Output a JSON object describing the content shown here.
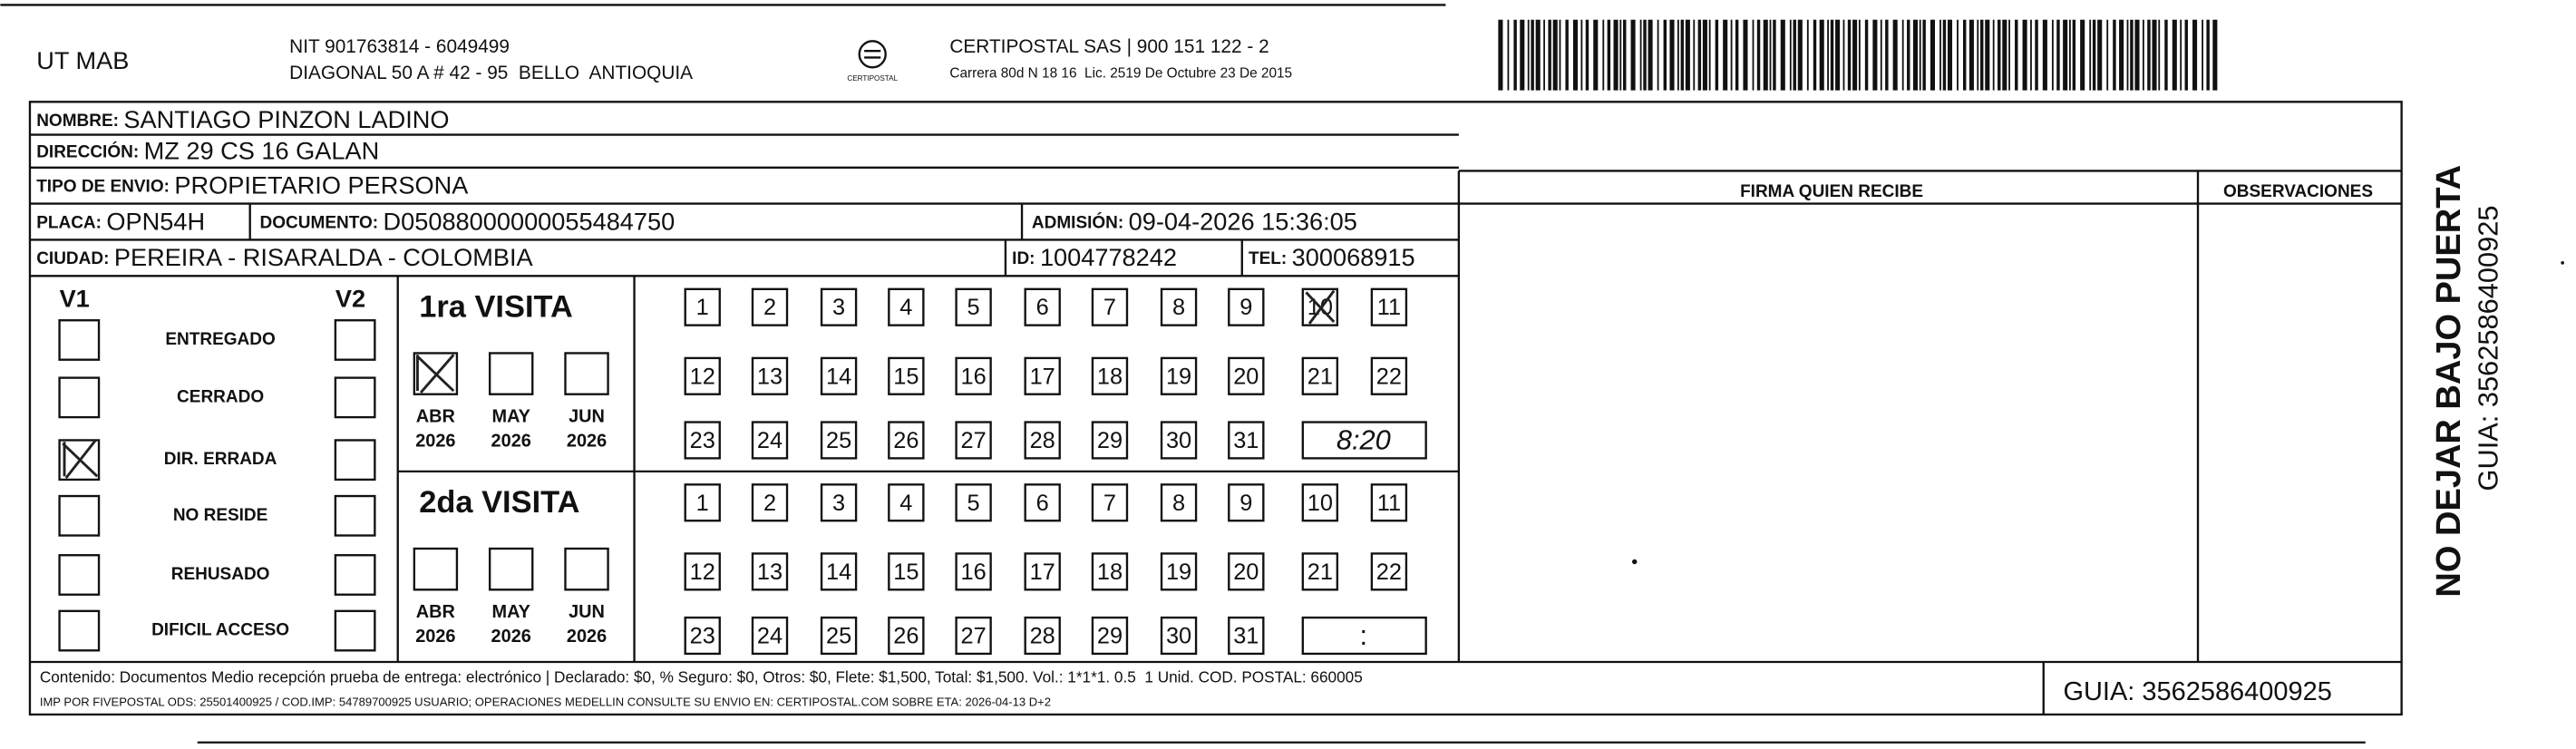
{
  "header": {
    "company": "UT MAB",
    "nit": "NIT 901763814 - 6049499",
    "address": "DIAGONAL 50 A # 42 - 95  BELLO  ANTIOQUIA",
    "logo_text": "CERTIPOSTAL",
    "carrier": "CERTIPOSTAL SAS | 900 151 122 - 2",
    "carrier_address": "Carrera 80d N 18 16  Lic. 2519 De Octubre 23 De 2015"
  },
  "recipient": {
    "name": {
      "label": "NOMBRE:",
      "value": "SANTIAGO PINZON LADINO"
    },
    "address": {
      "label": "DIRECCIÓN:",
      "value": "MZ 29 CS 16 GALAN"
    },
    "shipping_type": {
      "label": "TIPO DE ENVIO:",
      "value": "PROPIETARIO PERSONA"
    },
    "plate": {
      "label": "PLACA:",
      "value": "OPN54H"
    },
    "document": {
      "label": "DOCUMENTO:",
      "value": "D05088000000055484750"
    },
    "admission": {
      "label": "ADMISIÓN:",
      "value": "09-04-2026 15:36:05"
    },
    "city": {
      "label": "CIUDAD:",
      "value": "PEREIRA - RISARALDA - COLOMBIA"
    },
    "id": {
      "label": "ID:",
      "value": "1004778242"
    },
    "phone": {
      "label": "TEL:",
      "value": "300068915"
    }
  },
  "signature": {
    "header": "FIRMA QUIEN RECIBE",
    "observations_header": "OBSERVACIONES"
  },
  "visits": {
    "v1_label": "V1",
    "v2_label": "V2",
    "statuses": [
      "ENTREGADO",
      "CERRADO",
      "DIR. ERRADA",
      "NO RESIDE",
      "REHUSADO",
      "DIFICIL ACCESO"
    ],
    "days": [
      1,
      2,
      3,
      4,
      5,
      6,
      7,
      8,
      9,
      10,
      11,
      12,
      13,
      14,
      15,
      16,
      17,
      18,
      19,
      20,
      21,
      22,
      23,
      24,
      25,
      26,
      27,
      28,
      29,
      30,
      31
    ],
    "first": {
      "title": "1ra VISITA",
      "months": [
        {
          "month": "ABR",
          "year": "2026"
        },
        {
          "month": "MAY",
          "year": "2026"
        },
        {
          "month": "JUN",
          "year": "2026"
        }
      ],
      "time": "8:20"
    },
    "second": {
      "title": "2da VISITA",
      "months": [
        {
          "month": "ABR",
          "year": "2026"
        },
        {
          "month": "MAY",
          "year": "2026"
        },
        {
          "month": "JUN",
          "year": "2026"
        }
      ],
      "time": ":"
    }
  },
  "footer": {
    "content": "Contenido: Documentos Medio recepción prueba de entrega: electrónico | Declarado: $0, % Seguro: $0, Otros: $0, Flete: $1,500, Total: $1,500. Vol.: 1*1*1. 0.5  1 Unid. COD. POSTAL: 660005",
    "imp": "IMP POR FIVEPOSTAL ODS: 25501400925 / COD.IMP: 54789700925 USUARIO; OPERACIONES MEDELLIN CONSULTE SU ENVIO EN: CERTIPOSTAL.COM SOBRE ETA: 2026-04-13 D+2",
    "guia": "GUIA: 3562586400925"
  },
  "side": {
    "notice": "NO DEJAR BAJO PUERTA",
    "guia": "GUIA: 3562586400925"
  }
}
